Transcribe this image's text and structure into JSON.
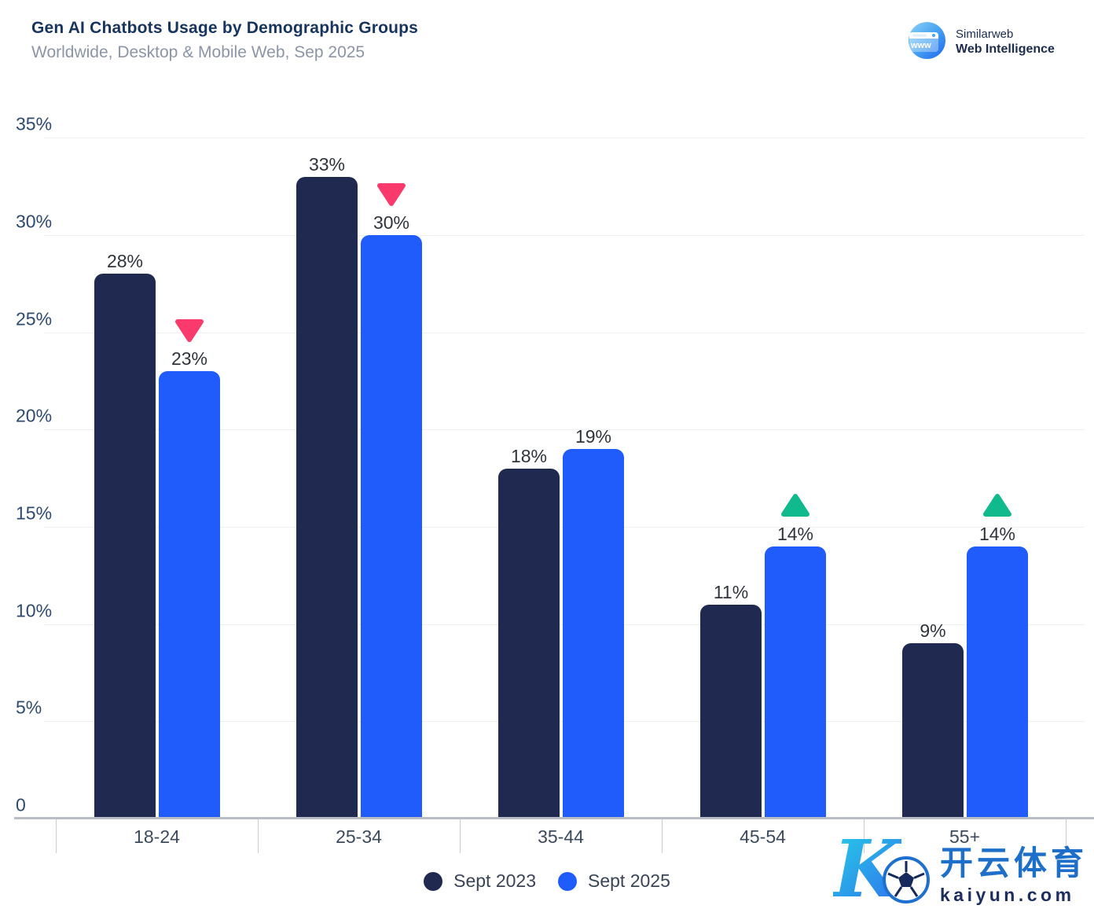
{
  "header": {
    "title": "Gen AI Chatbots Usage by Demographic Groups",
    "subtitle": "Worldwide, Desktop & Mobile Web, Sep 2025"
  },
  "brand": {
    "name": "Similarweb",
    "product": "Web Intelligence"
  },
  "chart_data": {
    "type": "bar",
    "title": "Gen AI Chatbots Usage by Demographic Groups",
    "subtitle": "Worldwide, Desktop & Mobile Web, Sep 2025",
    "categories": [
      "18-24",
      "25-34",
      "35-44",
      "45-54",
      "55+"
    ],
    "series": [
      {
        "name": "Sept 2023",
        "color": "#202a51",
        "values": [
          28,
          33,
          18,
          11,
          9
        ]
      },
      {
        "name": "Sept 2025",
        "color": "#1f5cfb",
        "values": [
          23,
          30,
          19,
          14,
          14
        ]
      }
    ],
    "value_suffix": "%",
    "ylim": [
      0,
      35
    ],
    "yticks": [
      {
        "label": "35%",
        "value": 35
      },
      {
        "label": "30%",
        "value": 30
      },
      {
        "label": "25%",
        "value": 25
      },
      {
        "label": "20%",
        "value": 20
      },
      {
        "label": "15%",
        "value": 15
      },
      {
        "label": "10%",
        "value": 10
      },
      {
        "label": "5%",
        "value": 5
      },
      {
        "label": "0",
        "value": 0
      }
    ],
    "grid": true,
    "legend_position": "bottom",
    "trend_markers": [
      {
        "category": "18-24",
        "series": "Sept 2025",
        "direction": "down"
      },
      {
        "category": "25-34",
        "series": "Sept 2025",
        "direction": "down"
      },
      {
        "category": "45-54",
        "series": "Sept 2025",
        "direction": "up"
      },
      {
        "category": "55+",
        "series": "Sept 2025",
        "direction": "up"
      }
    ],
    "marker_colors": {
      "up": "#10ba8c",
      "down": "#fa3a6c"
    }
  },
  "watermark": {
    "letter": "K",
    "cjk": "开云体育",
    "domain": "kaiyun.com"
  }
}
